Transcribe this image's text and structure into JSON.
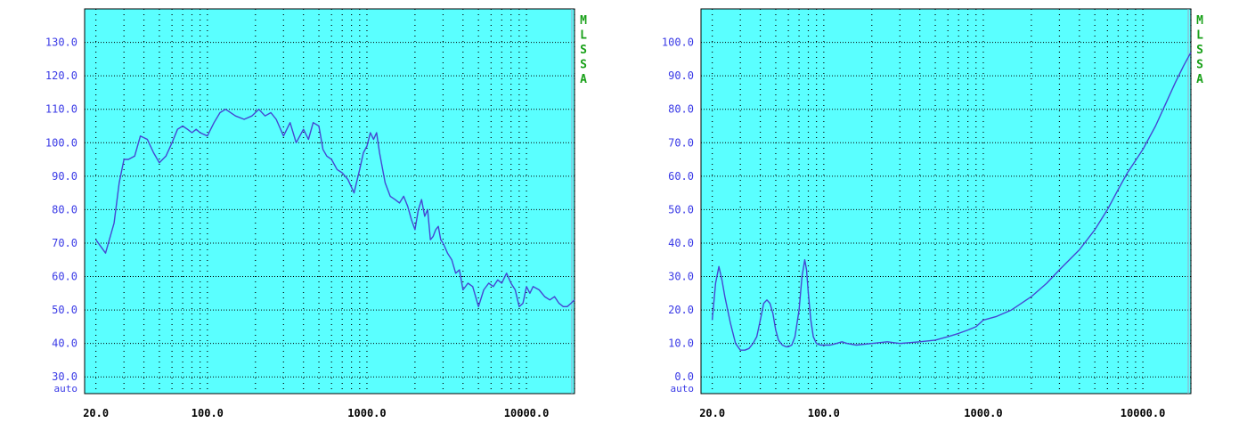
{
  "colors": {
    "plot_bg": "#5affff",
    "curve": "#4646d2",
    "grid": "#000000",
    "axis_text": "#3a3ae6",
    "side_text": "#18a018"
  },
  "side_label": [
    "M",
    "L",
    "S",
    "S",
    "A"
  ],
  "chart_data": [
    {
      "type": "line",
      "xscale": "log",
      "xlim": [
        17,
        20000
      ],
      "ylim": [
        25,
        140
      ],
      "yticks": [
        30,
        40,
        50,
        60,
        70,
        80,
        90,
        100,
        110,
        120,
        130
      ],
      "ytick_labels": [
        "30.0",
        "40.0",
        "50.0",
        "60.0",
        "70.0",
        "80.0",
        "90.0",
        "100.0",
        "110.0",
        "120.0",
        "130.0"
      ],
      "xtick_labels": [
        {
          "x": 20,
          "label": "20.0"
        },
        {
          "x": 100,
          "label": "100.0"
        },
        {
          "x": 1000,
          "label": "1000.0"
        },
        {
          "x": 10000,
          "label": "10000.0"
        }
      ],
      "auto_label": "auto",
      "grid": true,
      "series": [
        {
          "x": [
            20,
            23,
            26,
            28,
            30,
            32,
            35,
            38,
            42,
            46,
            50,
            55,
            60,
            65,
            70,
            75,
            80,
            85,
            90,
            100,
            110,
            120,
            130,
            150,
            170,
            190,
            210,
            230,
            250,
            270,
            300,
            330,
            360,
            400,
            430,
            460,
            500,
            530,
            560,
            600,
            650,
            700,
            760,
            830,
            900,
            950,
            1000,
            1050,
            1100,
            1150,
            1200,
            1300,
            1400,
            1500,
            1600,
            1700,
            1800,
            1900,
            2000,
            2100,
            2200,
            2300,
            2400,
            2500,
            2600,
            2700,
            2800,
            2900,
            3000,
            3200,
            3400,
            3600,
            3800,
            4000,
            4300,
            4600,
            5000,
            5400,
            5800,
            6200,
            6600,
            7000,
            7500,
            8000,
            8500,
            9000,
            9500,
            10000,
            10500,
            11000,
            12000,
            13000,
            14000,
            15000,
            16000,
            17000,
            18000,
            19000,
            20000
          ],
          "y": [
            71,
            67,
            76,
            88,
            95,
            95,
            96,
            102,
            101,
            97,
            94,
            96,
            100,
            104,
            105,
            104,
            103,
            104,
            103,
            102,
            106,
            109,
            110,
            108,
            107,
            108,
            110,
            108,
            109,
            107,
            102,
            106,
            100,
            104,
            101,
            106,
            105,
            98,
            96,
            95,
            92,
            91,
            89,
            85,
            92,
            97,
            99,
            103,
            101,
            103,
            97,
            88,
            84,
            83,
            82,
            84,
            81,
            77,
            74,
            80,
            83,
            78,
            80,
            71,
            72,
            74,
            75,
            71,
            70,
            67,
            65,
            61,
            62,
            56,
            58,
            57,
            51,
            56,
            58,
            57,
            59,
            58,
            61,
            58,
            56,
            51,
            52,
            57,
            55,
            57,
            56,
            54,
            53,
            54,
            52,
            51,
            51,
            52,
            53
          ]
        }
      ]
    },
    {
      "type": "line",
      "xscale": "log",
      "xlim": [
        17,
        20000
      ],
      "ylim": [
        -5,
        110
      ],
      "yticks": [
        0,
        10,
        20,
        30,
        40,
        50,
        60,
        70,
        80,
        90,
        100
      ],
      "ytick_labels": [
        "0.0",
        "10.0",
        "20.0",
        "30.0",
        "40.0",
        "50.0",
        "60.0",
        "70.0",
        "80.0",
        "90.0",
        "100.0"
      ],
      "xtick_labels": [
        {
          "x": 20,
          "label": "20.0"
        },
        {
          "x": 100,
          "label": "100.0"
        },
        {
          "x": 1000,
          "label": "1000.0"
        },
        {
          "x": 10000,
          "label": "10000.0"
        }
      ],
      "auto_label": "auto",
      "grid": true,
      "series": [
        {
          "x": [
            20,
            21,
            22,
            23,
            24,
            26,
            28,
            30,
            32,
            34,
            36,
            38,
            40,
            42,
            44,
            46,
            48,
            50,
            52,
            55,
            58,
            60,
            63,
            66,
            70,
            73,
            76,
            78,
            80,
            83,
            86,
            90,
            95,
            100,
            110,
            120,
            130,
            140,
            160,
            200,
            250,
            300,
            400,
            500,
            600,
            700,
            800,
            900,
            1000,
            1200,
            1500,
            2000,
            2500,
            3000,
            4000,
            5000,
            6000,
            7000,
            8000,
            10000,
            12000,
            14000,
            16000,
            18000,
            20000
          ],
          "y": [
            17,
            28,
            33,
            29,
            24,
            16,
            10,
            8,
            8,
            8.5,
            10,
            12,
            17,
            22,
            23,
            22,
            19,
            14,
            11,
            9.5,
            9,
            9,
            9.5,
            12,
            20,
            30,
            35,
            32,
            25,
            17,
            12,
            10,
            9.5,
            9.5,
            9.5,
            10,
            10.5,
            10,
            9.5,
            10,
            10.5,
            10,
            10.5,
            11,
            12,
            13,
            14,
            15,
            17,
            18,
            20,
            24,
            28,
            32,
            38,
            44,
            50,
            56,
            61,
            68,
            75,
            82,
            88,
            93,
            97
          ]
        }
      ]
    }
  ]
}
